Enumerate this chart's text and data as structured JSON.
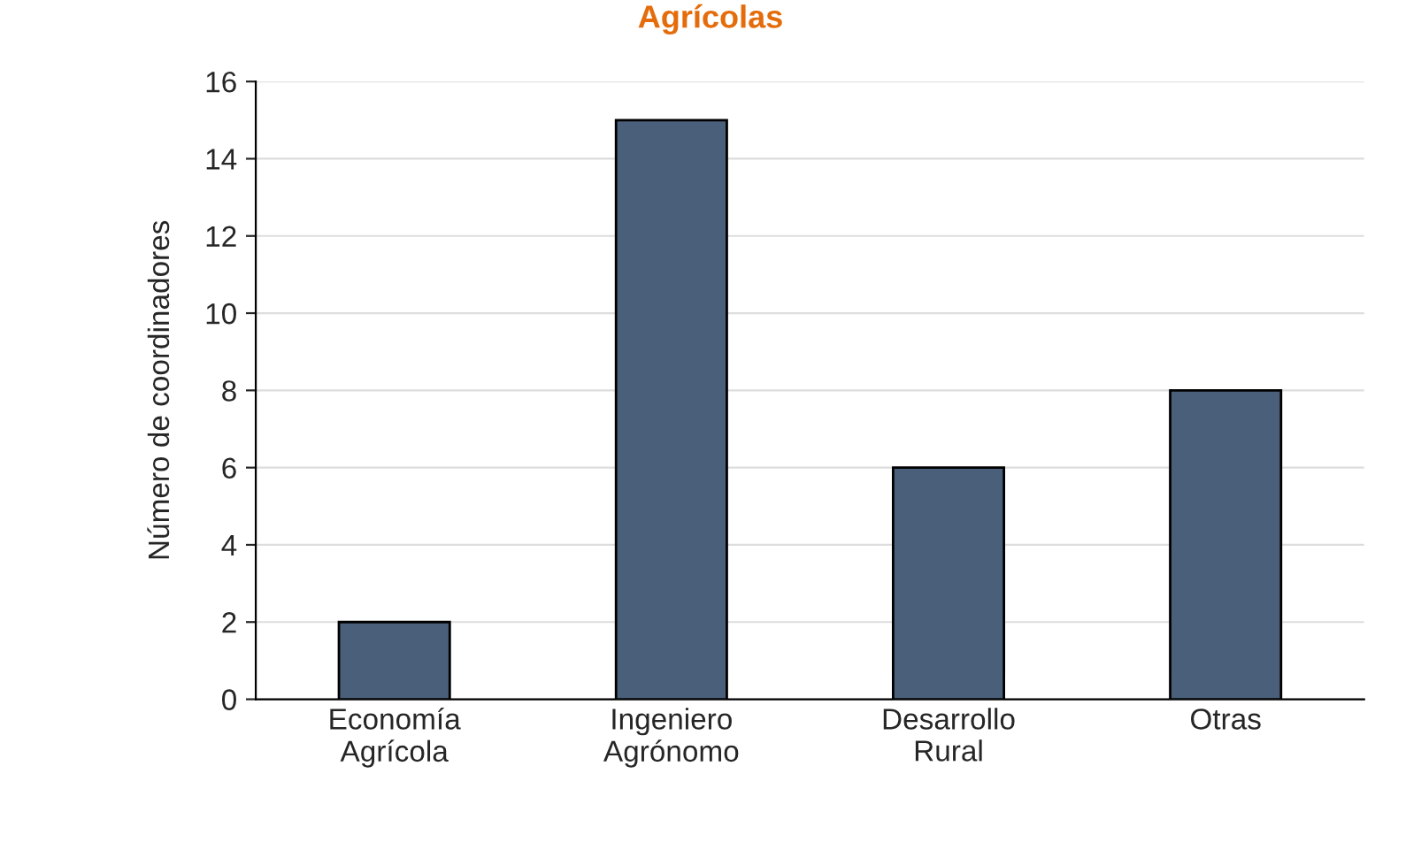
{
  "chart_data": {
    "type": "bar",
    "title": "Agrícolas",
    "ylabel": "Número de coordinadores",
    "categories": [
      "Economía\nAgrícola",
      "Ingeniero\nAgrónomo",
      "Desarrollo\nRural",
      "Otras"
    ],
    "values": [
      2,
      15,
      6,
      8
    ],
    "color": "#4a5f7a",
    "ylim": [
      0,
      16
    ],
    "yticks": [
      0,
      2,
      4,
      6,
      8,
      10,
      12,
      14,
      16
    ],
    "grid": "y"
  }
}
